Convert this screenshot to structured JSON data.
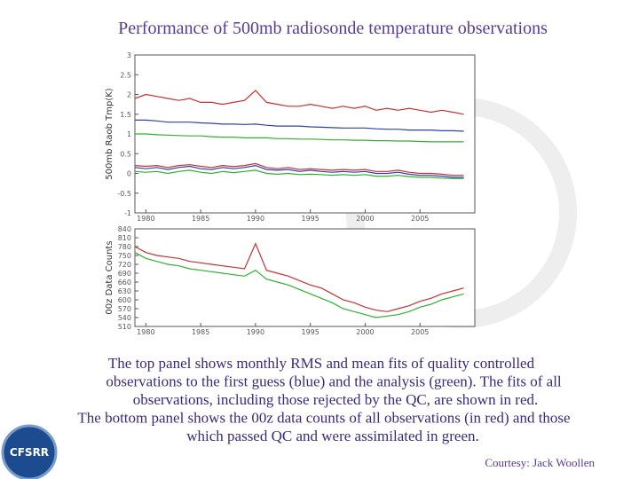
{
  "title": "Performance of 500mb radiosonde temperature observations",
  "caption": [
    "The top panel shows monthly RMS and mean fits of quality controlled",
    "observations to the first guess (blue) and the analysis (green). The fits of all",
    "observations, including those rejected by the QC, are shown in red.",
    "The bottom panel shows the 00z data counts of all observations (in red) and those",
    "which passed QC and were assimilated in green."
  ],
  "courtesy": "Courtesy: Jack Woollen",
  "logo_text": "CFSRR",
  "chart_data": [
    {
      "type": "line",
      "ylabel": "500mb Raob Tmp(K)",
      "x": [
        1979,
        1980,
        1981,
        1982,
        1983,
        1984,
        1985,
        1986,
        1987,
        1988,
        1989,
        1990,
        1991,
        1992,
        1993,
        1994,
        1995,
        1996,
        1997,
        1998,
        1999,
        2000,
        2001,
        2002,
        2003,
        2004,
        2005,
        2006,
        2007,
        2008,
        2009
      ],
      "xlim": [
        1979,
        2010
      ],
      "xticks": [
        1980,
        1985,
        1990,
        1995,
        2000,
        2005
      ],
      "ylim": [
        -1,
        3
      ],
      "yticks": [
        -1,
        -0.5,
        0,
        0.5,
        1,
        1.5,
        2,
        2.5,
        3
      ],
      "series": [
        {
          "color": "#c83232",
          "values": [
            1.9,
            2.0,
            1.95,
            1.9,
            1.85,
            1.9,
            1.8,
            1.8,
            1.75,
            1.8,
            1.85,
            2.1,
            1.8,
            1.75,
            1.7,
            1.7,
            1.75,
            1.7,
            1.65,
            1.7,
            1.65,
            1.7,
            1.6,
            1.65,
            1.6,
            1.65,
            1.6,
            1.55,
            1.6,
            1.55,
            1.5
          ]
        },
        {
          "color": "#3040b0",
          "values": [
            1.35,
            1.35,
            1.33,
            1.3,
            1.3,
            1.3,
            1.28,
            1.27,
            1.25,
            1.25,
            1.24,
            1.25,
            1.22,
            1.2,
            1.2,
            1.2,
            1.18,
            1.17,
            1.16,
            1.15,
            1.15,
            1.15,
            1.13,
            1.12,
            1.12,
            1.1,
            1.1,
            1.1,
            1.08,
            1.08,
            1.07
          ]
        },
        {
          "color": "#30b030",
          "values": [
            1.0,
            1.0,
            0.98,
            0.97,
            0.96,
            0.95,
            0.95,
            0.93,
            0.92,
            0.92,
            0.9,
            0.9,
            0.9,
            0.88,
            0.88,
            0.87,
            0.87,
            0.86,
            0.85,
            0.85,
            0.84,
            0.84,
            0.83,
            0.83,
            0.82,
            0.82,
            0.81,
            0.8,
            0.8,
            0.8,
            0.8
          ]
        },
        {
          "color": "#c83232",
          "values": [
            0.2,
            0.18,
            0.2,
            0.15,
            0.2,
            0.22,
            0.18,
            0.15,
            0.2,
            0.17,
            0.2,
            0.25,
            0.15,
            0.12,
            0.15,
            0.1,
            0.12,
            0.1,
            0.08,
            0.1,
            0.08,
            0.1,
            0.05,
            0.05,
            0.08,
            0.03,
            0.0,
            0.0,
            -0.02,
            -0.05,
            -0.05
          ]
        },
        {
          "color": "#3040b0",
          "values": [
            0.15,
            0.12,
            0.15,
            0.1,
            0.15,
            0.18,
            0.12,
            0.1,
            0.15,
            0.12,
            0.15,
            0.2,
            0.1,
            0.08,
            0.1,
            0.05,
            0.08,
            0.05,
            0.03,
            0.05,
            0.03,
            0.05,
            0.0,
            0.0,
            0.03,
            -0.02,
            -0.05,
            -0.05,
            -0.07,
            -0.1,
            -0.1
          ]
        },
        {
          "color": "#30b030",
          "values": [
            0.05,
            0.03,
            0.05,
            0.0,
            0.05,
            0.08,
            0.03,
            0.0,
            0.05,
            0.02,
            0.05,
            0.08,
            0.0,
            -0.02,
            0.0,
            -0.03,
            -0.02,
            -0.03,
            -0.05,
            -0.03,
            -0.05,
            -0.03,
            -0.07,
            -0.07,
            -0.05,
            -0.08,
            -0.1,
            -0.1,
            -0.12,
            -0.13,
            -0.13
          ]
        }
      ]
    },
    {
      "type": "line",
      "ylabel": "00z Data Counts",
      "x": [
        1979,
        1980,
        1981,
        1982,
        1983,
        1984,
        1985,
        1986,
        1987,
        1988,
        1989,
        1990,
        1991,
        1992,
        1993,
        1994,
        1995,
        1996,
        1997,
        1998,
        1999,
        2000,
        2001,
        2002,
        2003,
        2004,
        2005,
        2006,
        2007,
        2008,
        2009
      ],
      "xlim": [
        1979,
        2010
      ],
      "xticks": [
        1980,
        1985,
        1990,
        1995,
        2000,
        2005
      ],
      "ylim": [
        510,
        840
      ],
      "yticks": [
        510,
        540,
        570,
        600,
        630,
        660,
        690,
        720,
        750,
        780,
        810,
        840
      ],
      "series": [
        {
          "color": "#c83232",
          "values": [
            780,
            760,
            750,
            745,
            740,
            730,
            725,
            720,
            715,
            710,
            705,
            790,
            700,
            690,
            680,
            665,
            650,
            640,
            620,
            600,
            590,
            575,
            565,
            560,
            570,
            580,
            595,
            605,
            620,
            630,
            640
          ]
        },
        {
          "color": "#30b030",
          "values": [
            760,
            740,
            730,
            720,
            715,
            705,
            700,
            695,
            690,
            685,
            680,
            700,
            670,
            660,
            650,
            635,
            620,
            605,
            590,
            570,
            560,
            550,
            540,
            545,
            550,
            560,
            575,
            585,
            600,
            610,
            620
          ]
        }
      ]
    }
  ]
}
